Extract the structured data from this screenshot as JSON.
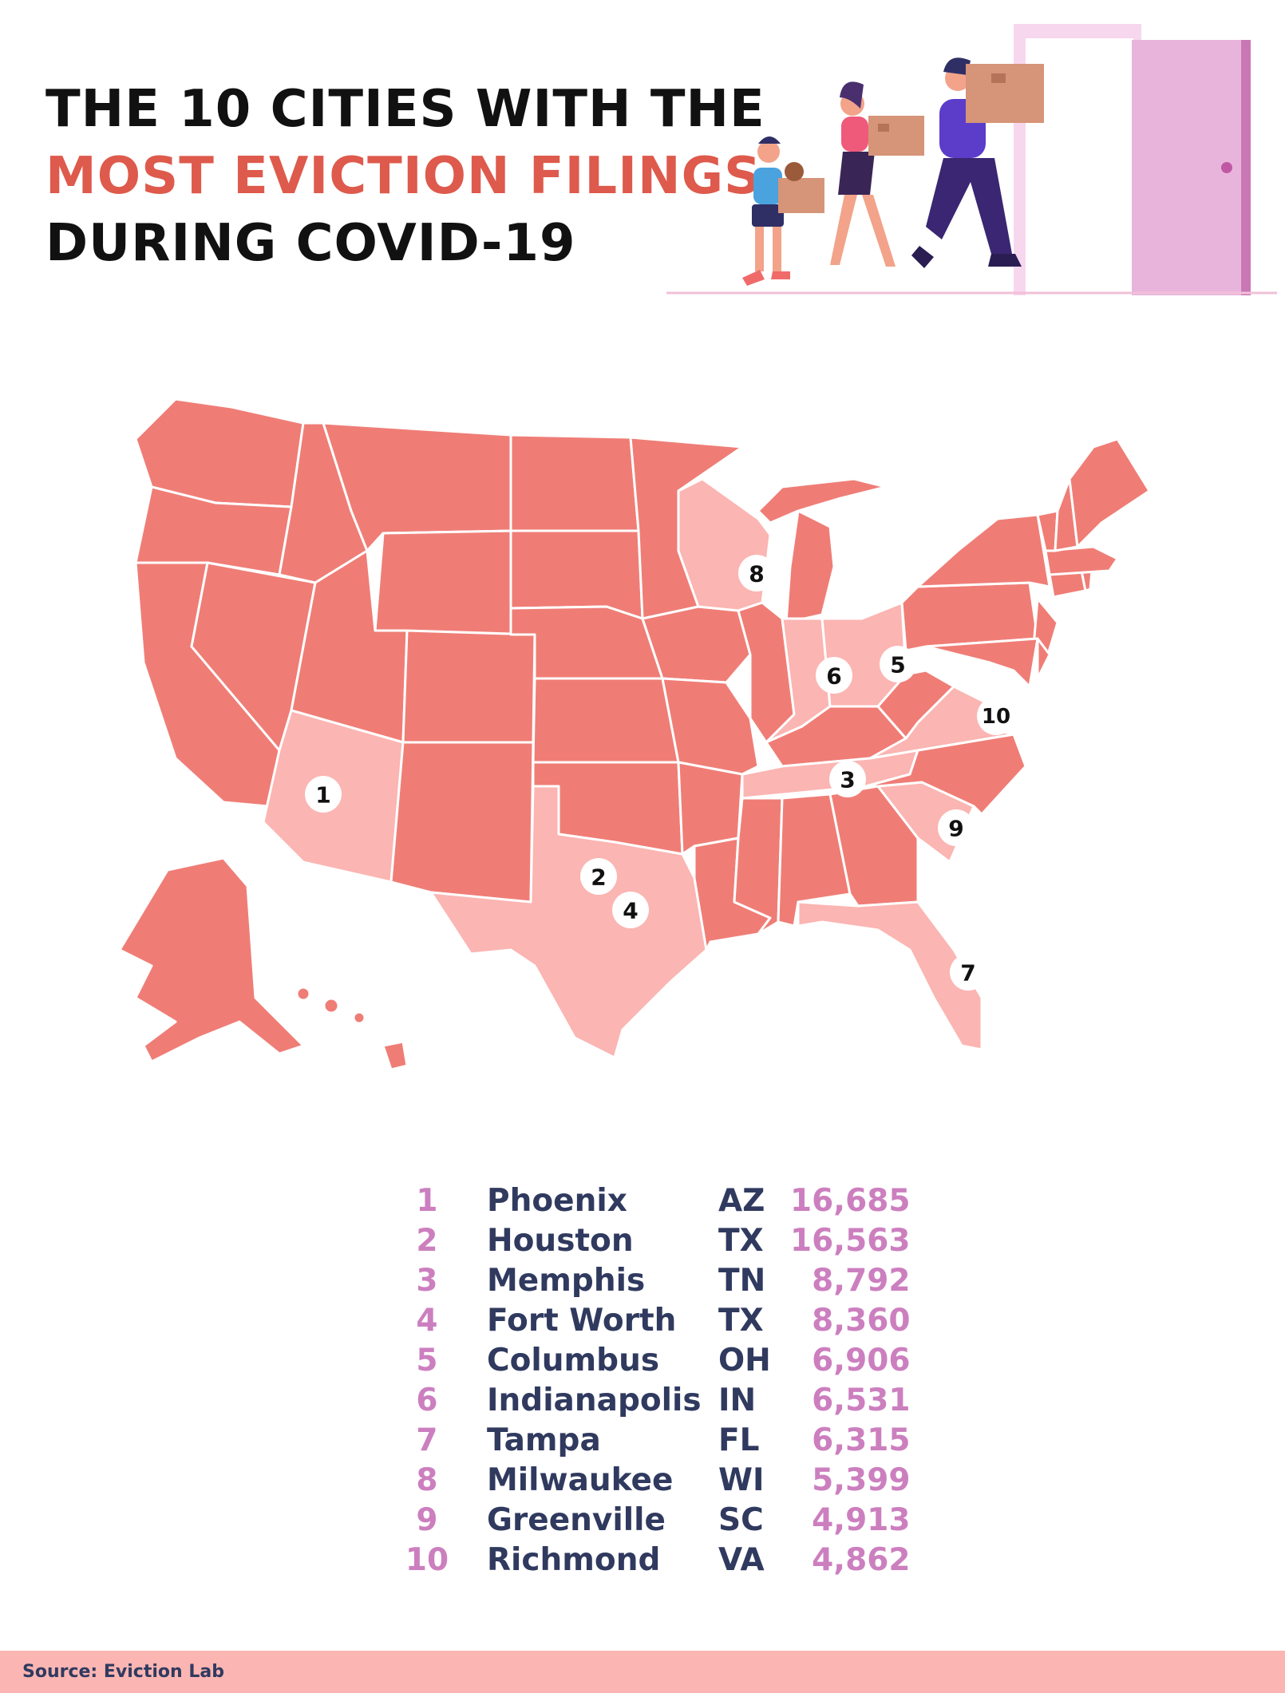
{
  "title": {
    "line1": "THE 10 CITIES WITH THE",
    "line2": "MOST EVICTION FILINGS",
    "line3": "DURING COVID-19"
  },
  "colors": {
    "title_dark": "#111111",
    "title_accent": "#de5a4c",
    "state_default": "#ef7d76",
    "state_highlight": "#fbb5b2",
    "state_border": "#ffffff",
    "rank_text": "#cc7fbf",
    "city_text": "#303a5f",
    "count_text": "#cc7fbf",
    "source_bar": "#fbb5b2",
    "source_text": "#303a5f"
  },
  "map": {
    "highlighted_states": [
      "AZ",
      "TX",
      "TN",
      "OH",
      "IN",
      "FL",
      "WI",
      "SC",
      "VA"
    ],
    "markers": [
      "1",
      "2",
      "3",
      "4",
      "5",
      "6",
      "7",
      "8",
      "9",
      "10"
    ]
  },
  "rankings": [
    {
      "rank": "1",
      "city": "Phoenix",
      "state": "AZ",
      "count": "16,685"
    },
    {
      "rank": "2",
      "city": "Houston",
      "state": "TX",
      "count": "16,563"
    },
    {
      "rank": "3",
      "city": "Memphis",
      "state": "TN",
      "count": "8,792"
    },
    {
      "rank": "4",
      "city": "Fort Worth",
      "state": "TX",
      "count": "8,360"
    },
    {
      "rank": "5",
      "city": "Columbus",
      "state": "OH",
      "count": "6,906"
    },
    {
      "rank": "6",
      "city": "Indianapolis",
      "state": "IN",
      "count": "6,531"
    },
    {
      "rank": "7",
      "city": "Tampa",
      "state": "FL",
      "count": "6,315"
    },
    {
      "rank": "8",
      "city": "Milwaukee",
      "state": "WI",
      "count": "5,399"
    },
    {
      "rank": "9",
      "city": "Greenville",
      "state": "SC",
      "count": "4,913"
    },
    {
      "rank": "10",
      "city": "Richmond",
      "state": "VA",
      "count": "4,862"
    }
  ],
  "source": "Source: Eviction Lab"
}
